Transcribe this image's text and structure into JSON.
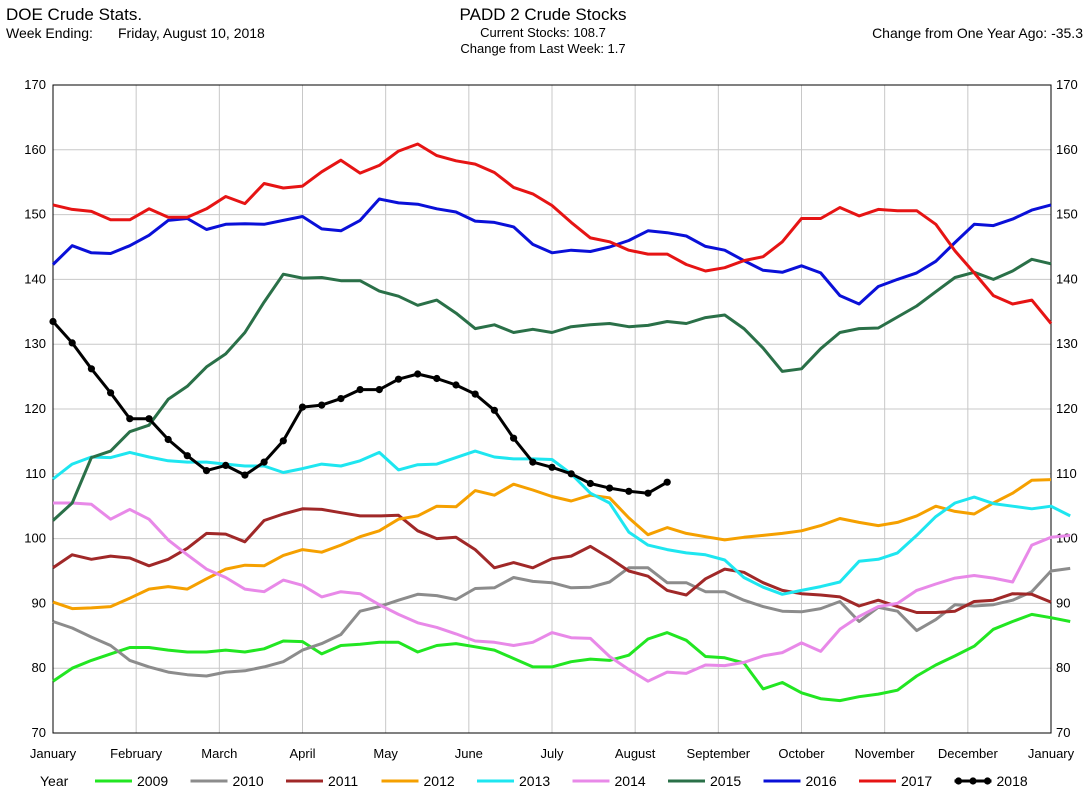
{
  "header": {
    "app_title": "DOE Crude Stats.",
    "week_label": "Week Ending:",
    "week_value": "Friday, August 10, 2018",
    "current_stocks": "Current Stocks: 108.7",
    "change_last_week": "Change from Last Week:   1.7",
    "change_year_ago": "Change from One Year Ago: -35.3"
  },
  "chart_data": {
    "type": "line",
    "title": "PADD 2 Crude Stocks",
    "ylim": [
      70,
      170
    ],
    "yticks": [
      70,
      80,
      90,
      100,
      110,
      120,
      130,
      140,
      150,
      160,
      170
    ],
    "xticks": [
      "January",
      "February",
      "March",
      "April",
      "May",
      "June",
      "July",
      "August",
      "September",
      "October",
      "November",
      "December",
      "January"
    ],
    "grid": true,
    "legend_title": "Year",
    "legend_position": "bottom",
    "series": [
      {
        "name": "2009",
        "color": "#22e622",
        "values": [
          78,
          80,
          81.2,
          82.2,
          83.2,
          83.2,
          82.8,
          82.5,
          82.5,
          82.8,
          82.5,
          83,
          84.2,
          84.1,
          82.2,
          83.5,
          83.7,
          84,
          84,
          82.5,
          83.5,
          83.8,
          83.3,
          82.8,
          81.5,
          80.2,
          80.2,
          81,
          81.4,
          81.2,
          82,
          84.5,
          85.5,
          84.3,
          81.8,
          81.6,
          80.8,
          76.8,
          77.8,
          76.2,
          75.3,
          75,
          75.6,
          76,
          76.6,
          78.8,
          80.5,
          81.9,
          83.4,
          86,
          87.2,
          88.3,
          87.8,
          87.2
        ]
      },
      {
        "name": "2010",
        "color": "#8c8c8c",
        "values": [
          87.2,
          86.2,
          84.8,
          83.5,
          81.2,
          80.2,
          79.4,
          79,
          78.8,
          79.4,
          79.6,
          80.2,
          81,
          82.8,
          83.8,
          85.2,
          88.8,
          89.5,
          90.5,
          91.4,
          91.2,
          90.6,
          92.3,
          92.4,
          94,
          93.4,
          93.2,
          92.4,
          92.5,
          93.3,
          95.5,
          95.5,
          93.2,
          93.2,
          91.8,
          91.8,
          90.5,
          89.5,
          88.8,
          88.7,
          89.2,
          90.3,
          87.2,
          89.4,
          88.8,
          85.8,
          87.5,
          89.8,
          89.6,
          89.8,
          90.5,
          91.8,
          95,
          95.4
        ]
      },
      {
        "name": "2011",
        "color": "#a02828",
        "values": [
          95.5,
          97.5,
          96.8,
          97.3,
          97,
          95.8,
          96.8,
          98.5,
          100.8,
          100.7,
          99.5,
          102.8,
          103.8,
          104.6,
          104.5,
          104,
          103.5,
          103.5,
          103.6,
          101.2,
          100,
          100.2,
          98.3,
          95.5,
          96.3,
          95.5,
          96.9,
          97.3,
          98.8,
          97,
          95,
          94.2,
          92,
          91.3,
          93.8,
          95.3,
          94.8,
          93.2,
          92,
          91.5,
          91.3,
          91,
          89.6,
          90.5,
          89.5,
          88.6,
          88.6,
          88.8,
          90.3,
          90.5,
          91.5,
          91.4,
          90.2
        ]
      },
      {
        "name": "2012",
        "color": "#f5a000",
        "values": [
          90.2,
          89.2,
          89.3,
          89.5,
          90.8,
          92.2,
          92.6,
          92.2,
          93.8,
          95.3,
          95.9,
          95.8,
          97.4,
          98.3,
          97.9,
          99,
          100.3,
          101.2,
          103,
          103.5,
          105,
          104.9,
          107.4,
          106.7,
          108.4,
          107.5,
          106.5,
          105.8,
          106.7,
          106.3,
          103.2,
          100.6,
          101.7,
          100.8,
          100.3,
          99.8,
          100.2,
          100.5,
          100.8,
          101.2,
          102,
          103.1,
          102.5,
          102,
          102.5,
          103.5,
          105,
          104.2,
          103.8,
          105.5,
          107,
          109,
          109.1
        ]
      },
      {
        "name": "2013",
        "color": "#1ee6f0",
        "values": [
          109.2,
          111.5,
          112.6,
          112.5,
          113.3,
          112.6,
          112,
          111.8,
          111.8,
          111.5,
          111.2,
          111.2,
          110.2,
          110.8,
          111.5,
          111.2,
          112,
          113.3,
          110.6,
          111.4,
          111.5,
          112.5,
          113.5,
          112.6,
          112.3,
          112.3,
          112.2,
          110,
          107,
          105.5,
          101,
          99,
          98.3,
          97.8,
          97.5,
          96.7,
          94,
          92.5,
          91.4,
          92,
          92.6,
          93.3,
          96.5,
          96.8,
          97.8,
          100.5,
          103.4,
          105.5,
          106.4,
          105.4,
          105,
          104.6,
          105,
          103.5
        ]
      },
      {
        "name": "2014",
        "color": "#e889e8",
        "values": [
          105.5,
          105.5,
          105.3,
          103,
          104.5,
          103,
          99.8,
          97.5,
          95.3,
          94,
          92.2,
          91.8,
          93.6,
          92.8,
          91,
          91.8,
          91.5,
          89.8,
          88.3,
          87,
          86.3,
          85.3,
          84.2,
          84,
          83.5,
          84,
          85.5,
          84.7,
          84.6,
          81.8,
          79.8,
          78,
          79.4,
          79.2,
          80.5,
          80.4,
          80.9,
          81.9,
          82.4,
          83.9,
          82.6,
          86,
          88,
          89.5,
          90,
          92,
          93,
          93.9,
          94.3,
          93.9,
          93.3,
          99,
          100.2,
          100.5
        ]
      },
      {
        "name": "2015",
        "color": "#2a7048",
        "values": [
          102.8,
          105.5,
          112.5,
          113.5,
          116.5,
          117.5,
          121.5,
          123.5,
          126.5,
          128.5,
          131.8,
          136.5,
          140.8,
          140.2,
          140.3,
          139.8,
          139.8,
          138.2,
          137.4,
          136,
          136.8,
          134.8,
          132.4,
          133,
          131.8,
          132.3,
          131.8,
          132.7,
          133,
          133.2,
          132.7,
          132.9,
          133.5,
          133.2,
          134.1,
          134.5,
          132.4,
          129.4,
          125.8,
          126.2,
          129.3,
          131.8,
          132.4,
          132.5,
          134.2,
          135.9,
          138.1,
          140.3,
          141.1,
          140,
          141.3,
          143.1,
          142.4
        ]
      },
      {
        "name": "2016",
        "color": "#0a10d8",
        "values": [
          142.3,
          145.2,
          144.1,
          144,
          145.2,
          146.8,
          149.1,
          149.4,
          147.7,
          148.5,
          148.6,
          148.5,
          149.1,
          149.7,
          147.8,
          147.5,
          149.1,
          152.4,
          151.8,
          151.6,
          150.9,
          150.4,
          149,
          148.8,
          148.1,
          145.4,
          144.1,
          144.5,
          144.3,
          145,
          146,
          147.5,
          147.2,
          146.7,
          145.1,
          144.5,
          142.9,
          141.4,
          141.1,
          142.1,
          141,
          137.5,
          136.2,
          138.9,
          140,
          141,
          142.8,
          145.7,
          148.5,
          148.3,
          149.3,
          150.7,
          151.5
        ]
      },
      {
        "name": "2017",
        "color": "#e61414",
        "values": [
          151.5,
          150.8,
          150.5,
          149.2,
          149.2,
          150.9,
          149.6,
          149.6,
          150.9,
          152.8,
          151.7,
          154.8,
          154.1,
          154.4,
          156.6,
          158.4,
          156.4,
          157.6,
          159.8,
          160.9,
          159.1,
          158.3,
          157.8,
          156.5,
          154.2,
          153.2,
          151.4,
          148.8,
          146.4,
          145.8,
          144.5,
          143.9,
          143.9,
          142.3,
          141.3,
          141.8,
          142.9,
          143.5,
          145.8,
          149.4,
          149.4,
          151.1,
          149.8,
          150.8,
          150.6,
          150.6,
          148.5,
          144.4,
          141,
          137.5,
          136.2,
          136.8,
          133.2
        ]
      },
      {
        "name": "2018",
        "color": "#000000",
        "markers": true,
        "values": [
          133.5,
          130.2,
          126.2,
          122.5,
          118.5,
          118.5,
          115.3,
          112.8,
          110.5,
          111.3,
          109.8,
          111.8,
          115.1,
          120.3,
          120.6,
          121.6,
          123,
          123,
          124.6,
          125.4,
          124.7,
          123.7,
          122.3,
          119.8,
          115.5,
          111.8,
          111,
          110,
          108.5,
          107.8,
          107.3,
          107,
          108.7
        ]
      }
    ]
  }
}
